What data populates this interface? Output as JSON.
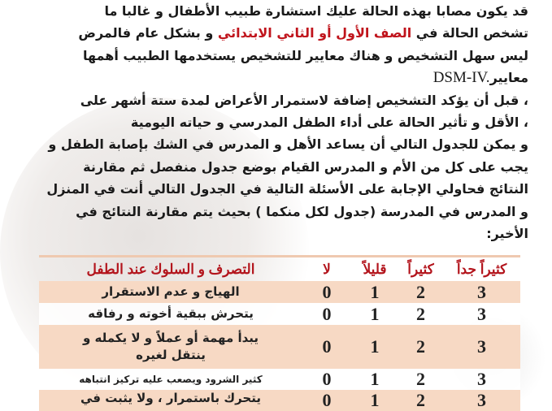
{
  "paragraph": {
    "lines": [
      "قد يكون مصابا بهذه الحالة عليك استشارة طبيب الأطفال و غالبا ما",
      "",
      "ليس سهل التشخيص و هناك معايير للتشخيص يستخدمها الطبيب أهمها",
      "معايير",
      "، قبل أن يؤكد التشخيص إضافة لاستمرار الأعراض لمدة ستة أشهر على",
      "، الأقل و تأثير الحالة على أداء الطفل المدرسي و حياته اليومية",
      "و يمكن للجدول التالي أن يساعد الأهل و المدرس في الشك بإصابة الطفل و",
      "يجب على كل من الأم و المدرس القيام بوضع جدول منفصل ثم مقارنة",
      "النتائج فحاولي الإجابة على الأسئلة التالية في الجدول التالي أنت في المنزل",
      "و المدرس في المدرسة  (جدول لكل منكما ) بحيث يتم مقارنة النتائج في",
      "الأخير:"
    ],
    "line2_before": "تشخص الحالة في ",
    "line2_red": "الصف الأول أو الثاني الابتدائي",
    "line2_after": " و بشكل عام فالمرض",
    "dsm": "DSM-IV."
  },
  "table": {
    "headers": {
      "very_often": "كثيراً جداً",
      "often": "كثيراً",
      "rarely": "قليلاً",
      "no": "لا",
      "behavior": "التصرف و السلوك عند الطفل"
    },
    "rows": [
      {
        "very_often": "3",
        "often": "2",
        "rarely": "1",
        "no": "0",
        "behavior": "الهياج و عدم الاستقرار"
      },
      {
        "very_often": "3",
        "often": "2",
        "rarely": "1",
        "no": "0",
        "behavior": "يتحرش ببقية أخوته و رفاقه"
      },
      {
        "very_often": "3",
        "often": "2",
        "rarely": "1",
        "no": "0",
        "behavior": "يبدأ مهمة أو عملاً و لا يكمله و ينتقل لغيره"
      },
      {
        "very_often": "3",
        "often": "2",
        "rarely": "1",
        "no": "0",
        "behavior": "كثير الشرود  ويصعب عليه تركيز انتباهه"
      },
      {
        "very_often": "3",
        "often": "2",
        "rarely": "1",
        "no": "0",
        "behavior": "يتحرك باستمرار ، ولا يثبت في"
      }
    ]
  },
  "colors": {
    "accent_red": "#c0141c",
    "row_peach": "#f7d9c4"
  }
}
